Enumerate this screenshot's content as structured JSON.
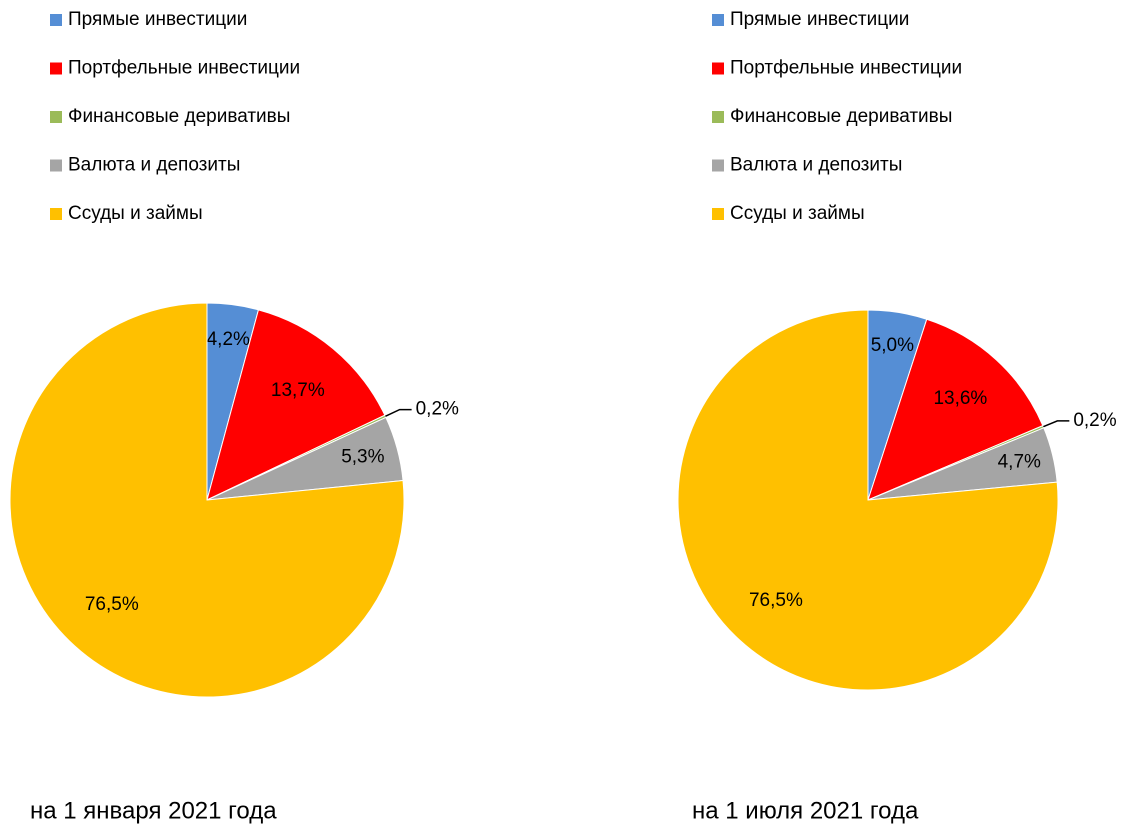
{
  "chart_data": [
    {
      "type": "pie",
      "title": "на 1 января 2021 года",
      "categories": [
        "Прямые инвестиции",
        "Портфельные инвестиции",
        "Финансовые деривативы",
        "Валюта и депозиты",
        "Ссуды и займы"
      ],
      "values": [
        4.2,
        13.7,
        0.2,
        5.3,
        76.5
      ],
      "value_labels": [
        "4,2%",
        "13,7%",
        "0,2%",
        "5,3%",
        "76,5%"
      ],
      "colors": [
        "#558ed5",
        "#ff0000",
        "#9bbb59",
        "#a5a5a5",
        "#ffc000"
      ]
    },
    {
      "type": "pie",
      "title": "на 1 июля 2021 года",
      "categories": [
        "Прямые инвестиции",
        "Портфельные инвестиции",
        "Финансовые деривативы",
        "Валюта и депозиты",
        "Ссуды и займы"
      ],
      "values": [
        5.0,
        13.6,
        0.2,
        4.7,
        76.5
      ],
      "value_labels": [
        "5,0%",
        "13,6%",
        "0,2%",
        "4,7%",
        "76,5%"
      ],
      "colors": [
        "#558ed5",
        "#ff0000",
        "#9bbb59",
        "#a5a5a5",
        "#ffc000"
      ]
    }
  ]
}
